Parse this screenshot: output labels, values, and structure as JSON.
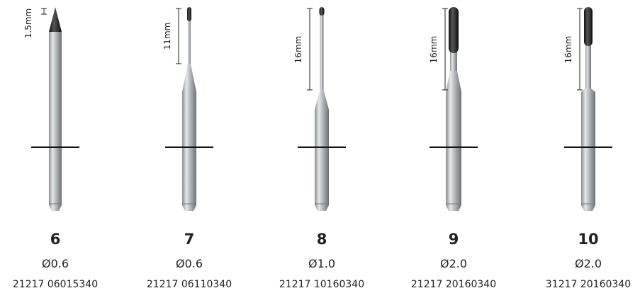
{
  "items": [
    {
      "length": "1.5mm",
      "number": "6",
      "diameter": "Ø0.6",
      "code": "21217 06015340"
    },
    {
      "length": "11mm",
      "number": "7",
      "diameter": "Ø0.6",
      "code": "21217 06110340"
    },
    {
      "length": "16mm",
      "number": "8",
      "diameter": "Ø1.0",
      "code": "21217 10160340"
    },
    {
      "length": "16mm",
      "number": "9",
      "diameter": "Ø2.0",
      "code": "21217 20160340"
    },
    {
      "length": "16mm",
      "number": "10",
      "diameter": "Ø2.0",
      "code": "31217 20160340"
    }
  ]
}
